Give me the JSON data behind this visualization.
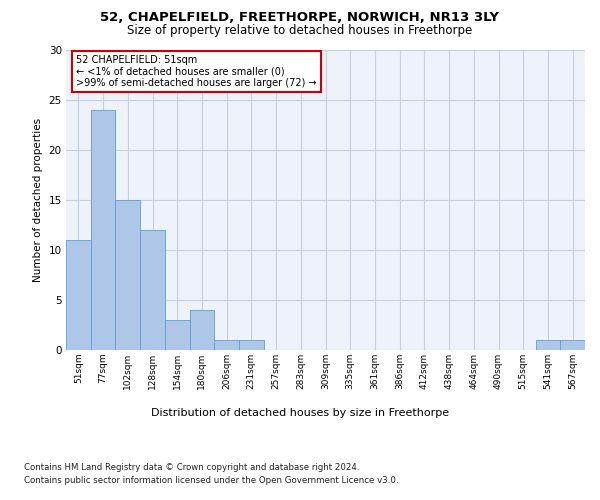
{
  "title": "52, CHAPELFIELD, FREETHORPE, NORWICH, NR13 3LY",
  "subtitle": "Size of property relative to detached houses in Freethorpe",
  "xlabel": "Distribution of detached houses by size in Freethorpe",
  "ylabel": "Number of detached properties",
  "bar_labels": [
    "51sqm",
    "77sqm",
    "102sqm",
    "128sqm",
    "154sqm",
    "180sqm",
    "206sqm",
    "231sqm",
    "257sqm",
    "283sqm",
    "309sqm",
    "335sqm",
    "361sqm",
    "386sqm",
    "412sqm",
    "438sqm",
    "464sqm",
    "490sqm",
    "515sqm",
    "541sqm",
    "567sqm"
  ],
  "bar_values": [
    11,
    24,
    15,
    12,
    3,
    4,
    1,
    1,
    0,
    0,
    0,
    0,
    0,
    0,
    0,
    0,
    0,
    0,
    0,
    1,
    1
  ],
  "bar_color": "#aec6e8",
  "bar_edge_color": "#5a9fd4",
  "annotation_text": "52 CHAPELFIELD: 51sqm\n← <1% of detached houses are smaller (0)\n>99% of semi-detached houses are larger (72) →",
  "annotation_box_color": "#ffffff",
  "annotation_box_edge_color": "#cc0000",
  "ylim": [
    0,
    30
  ],
  "yticks": [
    0,
    5,
    10,
    15,
    20,
    25,
    30
  ],
  "bg_color": "#eef2fa",
  "grid_color": "#c8cfe0",
  "footnote1": "Contains HM Land Registry data © Crown copyright and database right 2024.",
  "footnote2": "Contains public sector information licensed under the Open Government Licence v3.0."
}
